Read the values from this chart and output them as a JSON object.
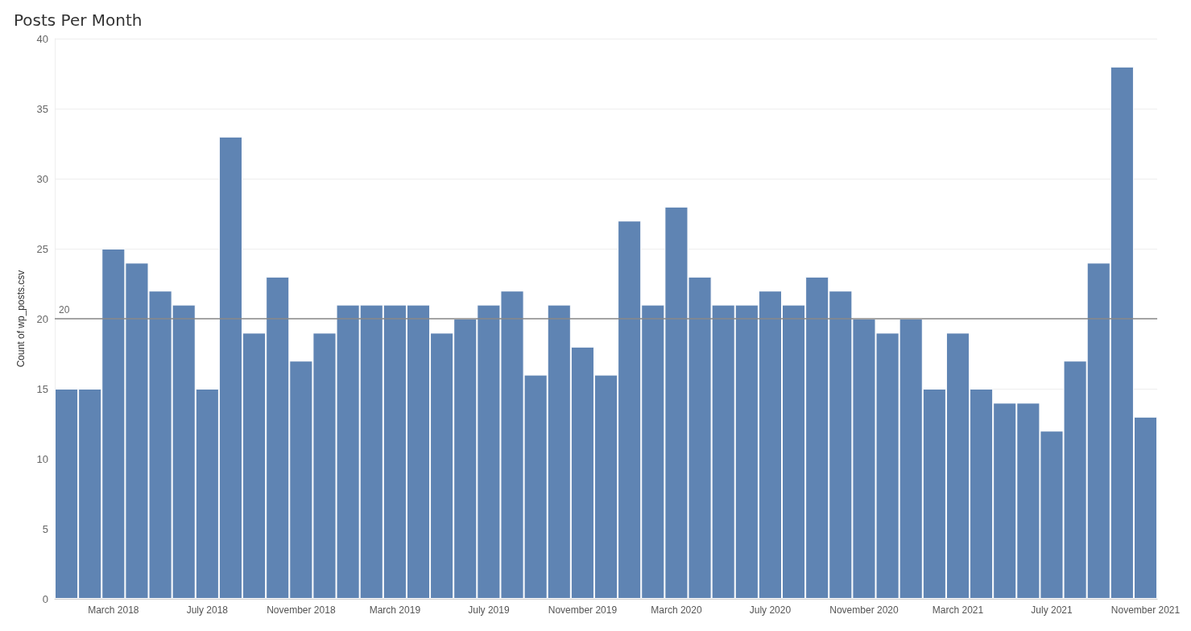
{
  "chart_data": {
    "type": "bar",
    "title": "Posts Per Month",
    "ylabel": "Count of wp_posts.csv",
    "categories": [
      null,
      null,
      "March 2018",
      null,
      null,
      null,
      "July 2018",
      null,
      null,
      null,
      "November 2018",
      null,
      null,
      null,
      "March 2019",
      null,
      null,
      null,
      "July 2019",
      null,
      null,
      null,
      "November 2019",
      null,
      null,
      null,
      "March 2020",
      null,
      null,
      null,
      "July 2020",
      null,
      null,
      null,
      "November 2020",
      null,
      null,
      null,
      "March 2021",
      null,
      null,
      null,
      "July 2021",
      null,
      null,
      null,
      "November 2021"
    ],
    "values": [
      15,
      15,
      25,
      24,
      22,
      21,
      15,
      33,
      19,
      23,
      17,
      19,
      21,
      21,
      21,
      21,
      19,
      20,
      21,
      22,
      16,
      21,
      18,
      16,
      27,
      21,
      28,
      23,
      21,
      21,
      22,
      21,
      23,
      22,
      20,
      19,
      20,
      15,
      19,
      15,
      14,
      14,
      12,
      17,
      24,
      38,
      13
    ],
    "color": "#5f84b3",
    "ylim": [
      0,
      40
    ],
    "yticks": [
      0,
      5,
      10,
      15,
      20,
      25,
      30,
      35,
      40
    ],
    "grid": "y",
    "ref_lines": [
      {
        "axis": "y",
        "value": 20,
        "label": "20",
        "color": "#888888"
      }
    ]
  }
}
